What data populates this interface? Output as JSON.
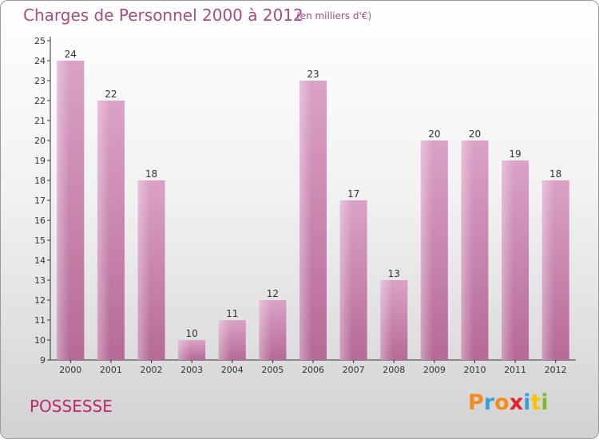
{
  "title": "Charges de Personnel 2000 à 2012",
  "subtitle": "(en milliers d'€)",
  "commune": "POSSESSE",
  "logo": {
    "letters": [
      "P",
      "r",
      "o",
      "x",
      "i",
      "t",
      "i"
    ],
    "colors": [
      "#f28c1e",
      "#3aa0d8",
      "#f28c1e",
      "#e0222a",
      "#3aa0d8",
      "#f5c400",
      "#7cb832"
    ]
  },
  "colors": {
    "bar": "#dba2c6",
    "bar_dark": "#b56a95",
    "text_accent": "#a64d7f"
  },
  "chart_data": {
    "type": "bar",
    "categories": [
      "2000",
      "2001",
      "2002",
      "2003",
      "2004",
      "2005",
      "2006",
      "2007",
      "2008",
      "2009",
      "2010",
      "2011",
      "2012"
    ],
    "values": [
      24,
      22,
      18,
      10,
      11,
      12,
      23,
      17,
      13,
      20,
      20,
      19,
      18
    ],
    "ylim": [
      9,
      25
    ],
    "yticks": [
      9,
      10,
      11,
      12,
      13,
      14,
      15,
      16,
      17,
      18,
      19,
      20,
      21,
      22,
      23,
      24,
      25
    ],
    "grid": false
  }
}
